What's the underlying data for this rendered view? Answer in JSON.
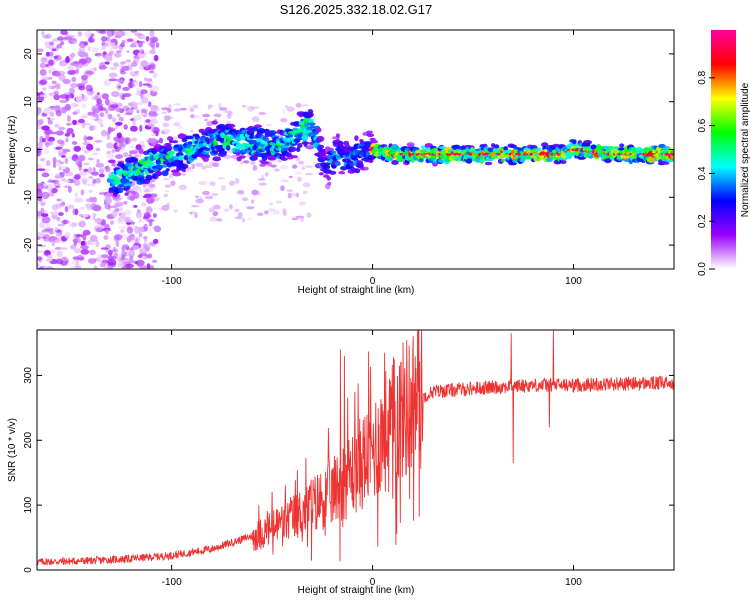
{
  "title": "S126.2025.332.18.02.G17",
  "chart_data": [
    {
      "type": "heatmap",
      "xlabel": "Height of straight line (km)",
      "ylabel": "Frequency (Hz)",
      "xlim": [
        -167,
        150
      ],
      "ylim": [
        -25,
        25
      ],
      "xticks": [
        -100,
        0,
        100
      ],
      "yticks": [
        -20,
        -10,
        0,
        10,
        20
      ],
      "colorbar": {
        "label": "Normalized spectral amplitude",
        "range": [
          0,
          1
        ],
        "ticks": [
          "0.0",
          "0.2",
          "0.4",
          "0.6",
          "0.8"
        ],
        "tick_values": [
          0.0,
          0.2,
          0.4,
          0.6,
          0.8
        ],
        "colors": [
          "#ffffff",
          "#9a00ff",
          "#0000ff",
          "#00ffff",
          "#00ff00",
          "#ffff00",
          "#ff0000",
          "#ff00a0"
        ]
      },
      "ridge": {
        "x": [
          -125,
          -115,
          -105,
          -95,
          -85,
          -75,
          -65,
          -55,
          -45,
          -38,
          -32,
          -28,
          -25,
          -22,
          -18,
          -12,
          -5,
          0,
          10,
          20,
          40,
          60,
          80,
          95,
          100,
          120,
          150
        ],
        "y": [
          -6,
          -4,
          -2,
          -1,
          1,
          2,
          2,
          1,
          1,
          3,
          5,
          3,
          -2,
          -4,
          -1,
          -2,
          -1,
          0,
          -1,
          -1,
          -1,
          -1,
          -1,
          -1,
          0,
          -1,
          -1
        ]
      }
    },
    {
      "type": "line",
      "xlabel": "Height of straight line (km)",
      "ylabel": "SNR (10 * v/v)",
      "xlim": [
        -167,
        150
      ],
      "ylim": [
        0,
        370
      ],
      "xticks": [
        -100,
        0,
        100
      ],
      "yticks": [
        0,
        100,
        200,
        300
      ],
      "color": "#ee3333",
      "trend": {
        "x": [
          -167,
          -140,
          -120,
          -100,
          -80,
          -60,
          -50,
          -40,
          -30,
          -20,
          -10,
          0,
          10,
          20,
          30,
          50,
          80,
          100,
          120,
          150
        ],
        "y": [
          10,
          12,
          15,
          20,
          30,
          50,
          65,
          80,
          100,
          120,
          150,
          185,
          230,
          260,
          275,
          280,
          285,
          285,
          287,
          288
        ]
      },
      "spikes": [
        {
          "x": -16,
          "y": 340
        },
        {
          "x": -14,
          "y": 330
        },
        {
          "x": -12,
          "y": 170
        },
        {
          "x": 6,
          "y": 335
        },
        {
          "x": 8,
          "y": 120
        },
        {
          "x": 10,
          "y": 110
        },
        {
          "x": 69,
          "y": 365
        },
        {
          "x": 70,
          "y": 165
        },
        {
          "x": 90,
          "y": 370
        },
        {
          "x": 88,
          "y": 220
        }
      ]
    }
  ]
}
